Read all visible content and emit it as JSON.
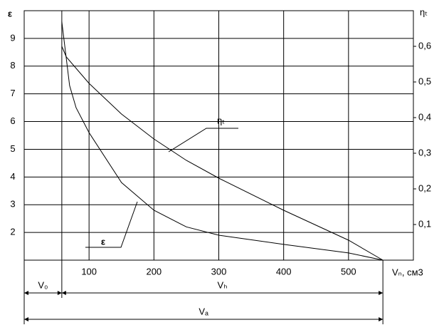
{
  "chart_data": {
    "type": "line",
    "y_label": "ε",
    "y2_label": "ηₜ",
    "x_label": "Vₙ, см3",
    "xlim": [
      0,
      600
    ],
    "xticks": [
      100,
      200,
      300,
      400,
      500
    ],
    "ylim": [
      1,
      10
    ],
    "yticks": [
      2,
      3,
      4,
      5,
      6,
      7,
      8,
      9
    ],
    "y2lim": [
      0,
      0.7
    ],
    "y2ticks": [
      {
        "value": 0.1,
        "label": "0,1"
      },
      {
        "value": 0.2,
        "label": "0,2"
      },
      {
        "value": 0.3,
        "label": "0,3"
      },
      {
        "value": 0.4,
        "label": "0,4"
      },
      {
        "value": 0.5,
        "label": "0,5"
      },
      {
        "value": 0.6,
        "label": "0,6"
      }
    ],
    "grid": true,
    "series": [
      {
        "name": "ε",
        "color": "#000000",
        "axis": "y",
        "x": [
          58,
          70,
          80,
          100,
          150,
          200,
          250,
          300,
          400,
          500,
          553
        ],
        "values": [
          9.6,
          7.3,
          6.5,
          5.6,
          3.8,
          2.8,
          2.2,
          1.9,
          1.57,
          1.26,
          1.0
        ]
      },
      {
        "name": "ηₜ",
        "color": "#000000",
        "axis": "y2",
        "x": [
          58,
          65,
          100,
          150,
          200,
          250,
          300,
          400,
          500,
          553
        ],
        "values": [
          0.6,
          0.57,
          0.496,
          0.41,
          0.34,
          0.28,
          0.23,
          0.14,
          0.056,
          0
        ]
      }
    ],
    "dimensions": [
      {
        "label": "V₀",
        "from": 0,
        "to": 58
      },
      {
        "label": "Vₕ",
        "from": 58,
        "to": 553
      },
      {
        "label": "Vₐ",
        "from": 0,
        "to": 553
      }
    ]
  }
}
